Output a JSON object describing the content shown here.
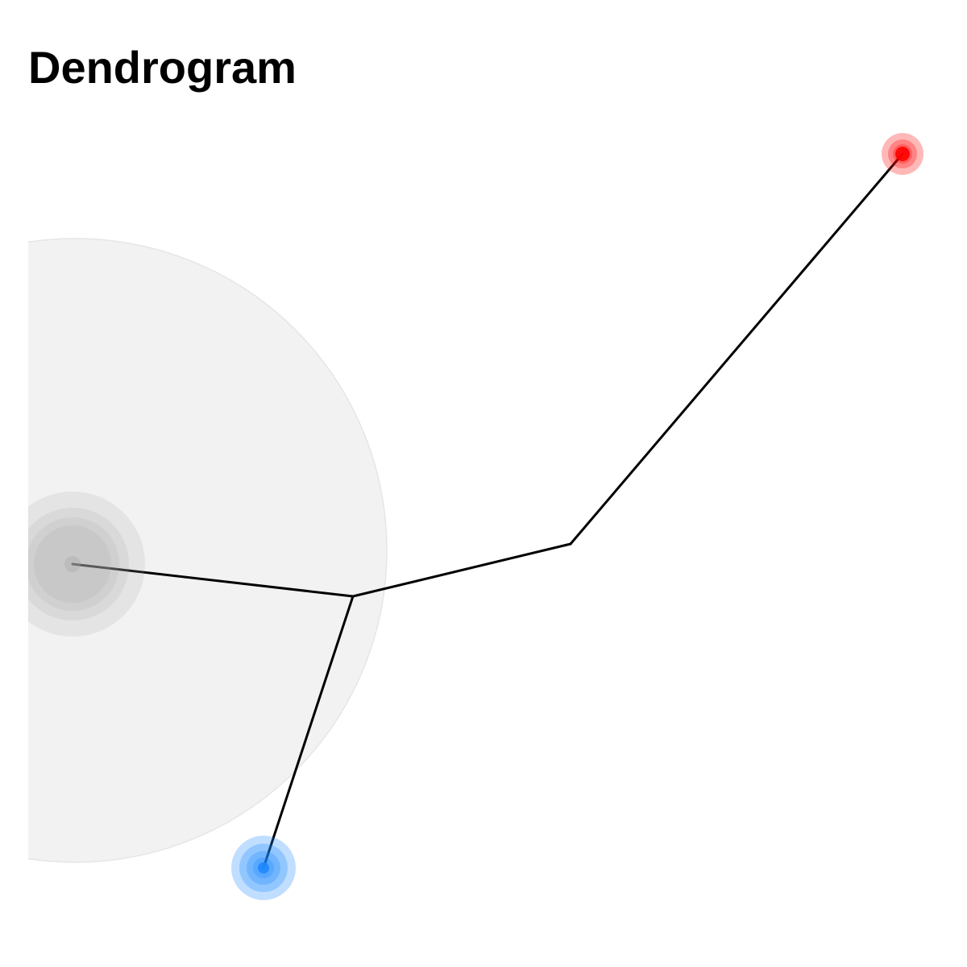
{
  "title": "Dendrogram",
  "colors": {
    "background": "#ffffff",
    "backdrop_disc": "#f2f2f2",
    "backdrop_disc_edge": "#e6e6e6",
    "edge": "#000000",
    "root_node": "#a6a6a6",
    "leaf_red": "#ff0000",
    "leaf_blue": "#1e88ff"
  },
  "diagram": {
    "type": "dendrogram",
    "nodes": [
      {
        "id": "root",
        "kind": "root",
        "color": "#a6a6a6",
        "halo_rings": 4,
        "icon": "grey-root-node"
      },
      {
        "id": "branch-lower",
        "kind": "internal"
      },
      {
        "id": "branch-upper",
        "kind": "internal"
      },
      {
        "id": "leaf-red",
        "kind": "leaf",
        "color": "#ff0000",
        "halo_rings": 3,
        "icon": "red-leaf-node"
      },
      {
        "id": "leaf-blue",
        "kind": "leaf",
        "color": "#1e88ff",
        "halo_rings": 4,
        "icon": "blue-leaf-node"
      }
    ],
    "edges": [
      {
        "from": "root",
        "to": "branch-lower"
      },
      {
        "from": "branch-lower",
        "to": "branch-upper"
      },
      {
        "from": "branch-upper",
        "to": "leaf-red"
      },
      {
        "from": "branch-lower",
        "to": "leaf-blue"
      }
    ]
  }
}
